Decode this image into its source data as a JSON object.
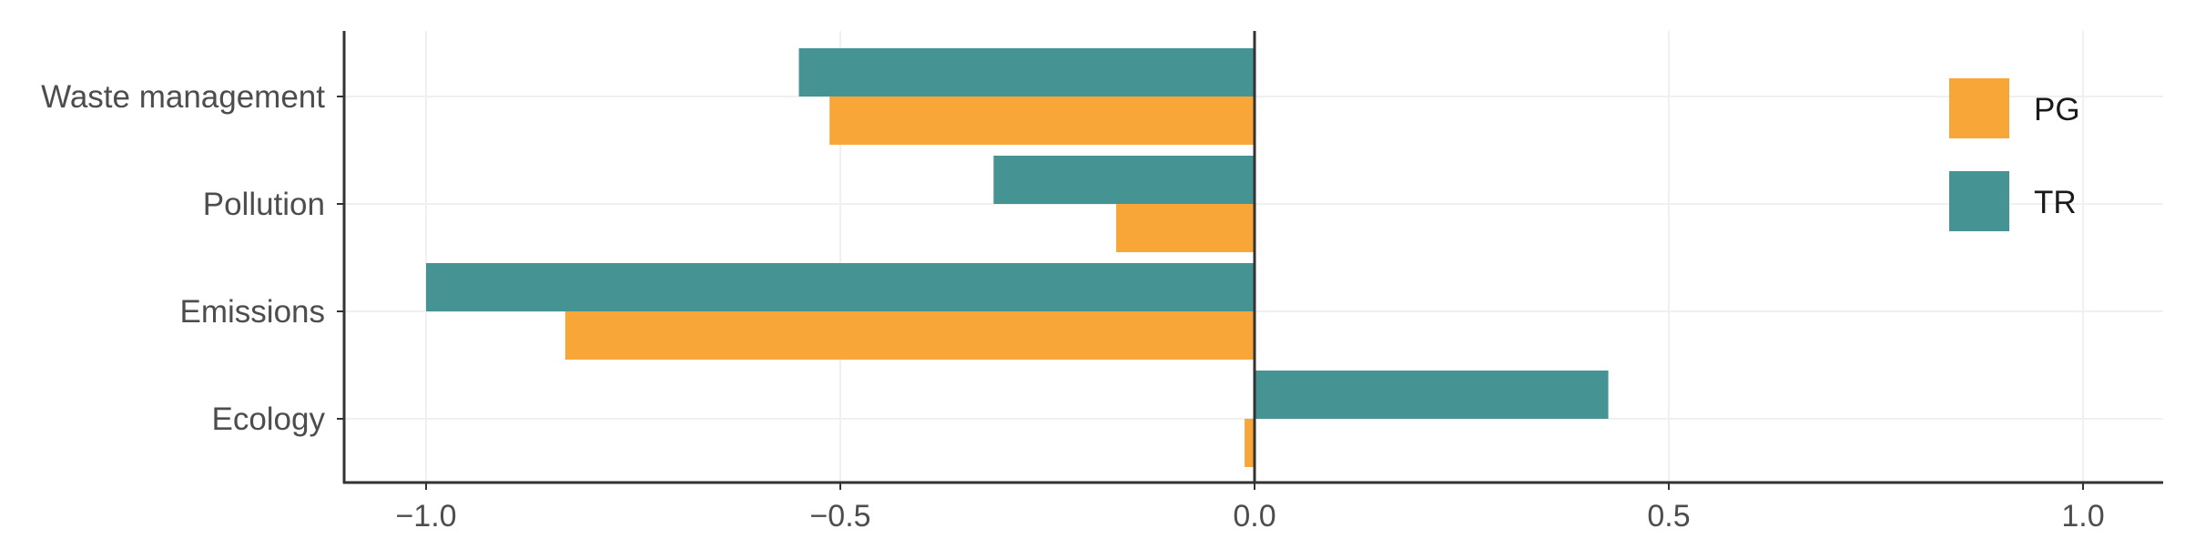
{
  "chart_data": {
    "type": "bar",
    "orientation": "horizontal",
    "categories": [
      "Waste management",
      "Pollution",
      "Emissions",
      "Ecology"
    ],
    "series": [
      {
        "name": "TR",
        "color": "#459393",
        "values": [
          -0.55,
          -0.315,
          -1.0,
          0.427
        ]
      },
      {
        "name": "PG",
        "color": "#f9a638",
        "values": [
          -0.513,
          -0.167,
          -0.832,
          -0.012
        ]
      }
    ],
    "xlim": [
      -1.1,
      1.1
    ],
    "xticks": [
      -1.0,
      -0.5,
      0.0,
      0.5,
      1.0
    ],
    "xtick_labels": [
      "−1.0",
      "−0.5",
      "0.0",
      "0.5",
      "1.0"
    ],
    "legend": {
      "placement": "top-right",
      "entries": [
        {
          "name": "PG",
          "color": "#f9a638"
        },
        {
          "name": "TR",
          "color": "#459393"
        }
      ]
    },
    "grid": true,
    "title": "",
    "xlabel": "",
    "ylabel": ""
  }
}
